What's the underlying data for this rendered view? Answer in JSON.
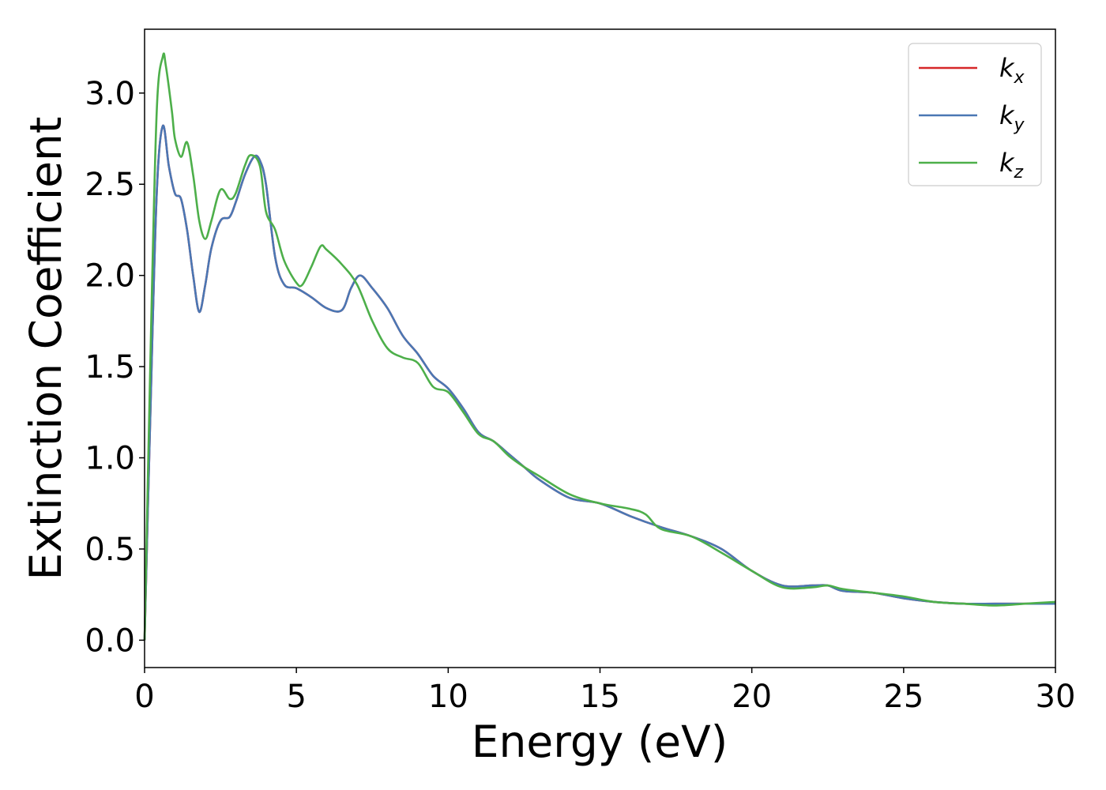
{
  "chart_data": {
    "type": "line",
    "title": "",
    "xlabel": "Energy (eV)",
    "ylabel": "Extinction Coefficient",
    "xlim": [
      0,
      30
    ],
    "ylim": [
      -0.15,
      3.35
    ],
    "xticks": [
      "0",
      "5",
      "10",
      "15",
      "20",
      "25",
      "30"
    ],
    "yticks": [
      "0.0",
      "0.5",
      "1.0",
      "1.5",
      "2.0",
      "2.5",
      "3.0"
    ],
    "grid": false,
    "legend_position": "top-right",
    "series": [
      {
        "name": "k_x",
        "legend_base": "k",
        "legend_sub": "x",
        "color": "#d62728",
        "x": [
          0,
          0.2,
          0.4,
          0.6,
          0.8,
          1.0,
          1.2,
          1.4,
          1.6,
          1.8,
          2.0,
          2.2,
          2.5,
          2.8,
          3.0,
          3.3,
          3.6,
          3.8,
          4.0,
          4.3,
          4.6,
          5.0,
          5.5,
          6.0,
          6.5,
          6.8,
          7.1,
          7.5,
          8.0,
          8.5,
          9.0,
          9.5,
          10.0,
          10.5,
          11.0,
          11.5,
          12.0,
          12.5,
          13.0,
          14.0,
          15.0,
          16.0,
          17.0,
          18.0,
          19.0,
          20.0,
          21.0,
          22.0,
          22.5,
          23.0,
          24.0,
          25.0,
          26.0,
          27.0,
          28.0,
          29.0,
          30.0
        ],
        "y": [
          0.0,
          1.3,
          2.45,
          2.82,
          2.6,
          2.45,
          2.42,
          2.25,
          2.0,
          1.8,
          1.95,
          2.15,
          2.3,
          2.32,
          2.4,
          2.55,
          2.65,
          2.63,
          2.5,
          2.1,
          1.95,
          1.93,
          1.88,
          1.82,
          1.81,
          1.93,
          2.0,
          1.93,
          1.82,
          1.67,
          1.57,
          1.45,
          1.38,
          1.27,
          1.14,
          1.09,
          1.02,
          0.95,
          0.88,
          0.78,
          0.75,
          0.68,
          0.62,
          0.57,
          0.5,
          0.38,
          0.3,
          0.3,
          0.3,
          0.27,
          0.26,
          0.23,
          0.21,
          0.2,
          0.2,
          0.2,
          0.2
        ]
      },
      {
        "name": "k_y",
        "legend_base": "k",
        "legend_sub": "y",
        "color": "#4a77b4",
        "x": [
          0,
          0.2,
          0.4,
          0.6,
          0.8,
          1.0,
          1.2,
          1.4,
          1.6,
          1.8,
          2.0,
          2.2,
          2.5,
          2.8,
          3.0,
          3.3,
          3.6,
          3.8,
          4.0,
          4.3,
          4.6,
          5.0,
          5.5,
          6.0,
          6.5,
          6.8,
          7.1,
          7.5,
          8.0,
          8.5,
          9.0,
          9.5,
          10.0,
          10.5,
          11.0,
          11.5,
          12.0,
          12.5,
          13.0,
          14.0,
          15.0,
          16.0,
          17.0,
          18.0,
          19.0,
          20.0,
          21.0,
          22.0,
          22.5,
          23.0,
          24.0,
          25.0,
          26.0,
          27.0,
          28.0,
          29.0,
          30.0
        ],
        "y": [
          0.0,
          1.3,
          2.45,
          2.82,
          2.6,
          2.45,
          2.42,
          2.25,
          2.0,
          1.8,
          1.95,
          2.15,
          2.3,
          2.32,
          2.4,
          2.55,
          2.65,
          2.63,
          2.5,
          2.1,
          1.95,
          1.93,
          1.88,
          1.82,
          1.81,
          1.93,
          2.0,
          1.93,
          1.82,
          1.67,
          1.57,
          1.45,
          1.38,
          1.27,
          1.14,
          1.09,
          1.02,
          0.95,
          0.88,
          0.78,
          0.75,
          0.68,
          0.62,
          0.57,
          0.5,
          0.38,
          0.3,
          0.3,
          0.3,
          0.27,
          0.26,
          0.23,
          0.21,
          0.2,
          0.2,
          0.2,
          0.2
        ]
      },
      {
        "name": "k_z",
        "legend_base": "k",
        "legend_sub": "z",
        "color": "#4daf4a",
        "x": [
          0,
          0.2,
          0.4,
          0.6,
          0.7,
          0.9,
          1.0,
          1.2,
          1.4,
          1.6,
          1.8,
          2.0,
          2.2,
          2.5,
          2.8,
          3.0,
          3.3,
          3.5,
          3.8,
          4.0,
          4.3,
          4.6,
          5.0,
          5.2,
          5.5,
          5.8,
          6.0,
          6.5,
          7.0,
          7.5,
          8.0,
          8.5,
          9.0,
          9.5,
          10.0,
          10.5,
          11.0,
          11.5,
          12.0,
          12.5,
          13.0,
          14.0,
          15.0,
          16.0,
          16.5,
          17.0,
          18.0,
          19.0,
          20.0,
          21.0,
          22.0,
          22.5,
          23.0,
          24.0,
          25.0,
          26.0,
          27.0,
          28.0,
          29.0,
          30.0
        ],
        "y": [
          0.0,
          1.6,
          2.9,
          3.2,
          3.15,
          2.9,
          2.75,
          2.65,
          2.73,
          2.55,
          2.3,
          2.2,
          2.3,
          2.47,
          2.42,
          2.45,
          2.6,
          2.66,
          2.6,
          2.35,
          2.25,
          2.08,
          1.96,
          1.95,
          2.05,
          2.16,
          2.14,
          2.06,
          1.95,
          1.75,
          1.6,
          1.55,
          1.52,
          1.39,
          1.36,
          1.25,
          1.13,
          1.09,
          1.01,
          0.95,
          0.9,
          0.8,
          0.75,
          0.72,
          0.69,
          0.61,
          0.57,
          0.48,
          0.38,
          0.29,
          0.29,
          0.3,
          0.28,
          0.26,
          0.24,
          0.21,
          0.2,
          0.19,
          0.2,
          0.21
        ]
      }
    ]
  }
}
